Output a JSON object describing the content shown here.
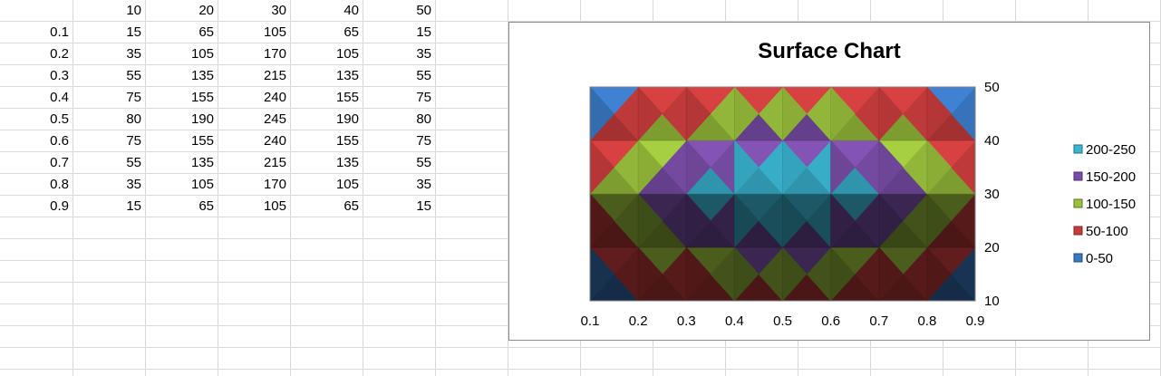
{
  "sheet": {
    "header_cols": [
      "10",
      "20",
      "30",
      "40",
      "50"
    ],
    "rows": [
      {
        "label": "0.1",
        "cells": [
          "15",
          "65",
          "105",
          "65",
          "15"
        ]
      },
      {
        "label": "0.2",
        "cells": [
          "35",
          "105",
          "170",
          "105",
          "35"
        ]
      },
      {
        "label": "0.3",
        "cells": [
          "55",
          "135",
          "215",
          "135",
          "55"
        ]
      },
      {
        "label": "0.4",
        "cells": [
          "75",
          "155",
          "240",
          "155",
          "75"
        ]
      },
      {
        "label": "0.5",
        "cells": [
          "80",
          "190",
          "245",
          "190",
          "80"
        ]
      },
      {
        "label": "0.6",
        "cells": [
          "75",
          "155",
          "240",
          "155",
          "75"
        ]
      },
      {
        "label": "0.7",
        "cells": [
          "55",
          "135",
          "215",
          "135",
          "55"
        ]
      },
      {
        "label": "0.8",
        "cells": [
          "35",
          "105",
          "170",
          "105",
          "35"
        ]
      },
      {
        "label": "0.9",
        "cells": [
          "15",
          "65",
          "105",
          "65",
          "15"
        ]
      }
    ]
  },
  "chart_data": {
    "type": "heatmap",
    "subtype": "surface",
    "title": "Surface Chart",
    "x": [
      0.1,
      0.2,
      0.3,
      0.4,
      0.5,
      0.6,
      0.7,
      0.8,
      0.9
    ],
    "x_tick_labels": [
      "0.1",
      "0.2",
      "0.3",
      "0.4",
      "0.5",
      "0.6",
      "0.7",
      "0.8",
      "0.9"
    ],
    "y": [
      10,
      20,
      30,
      40,
      50
    ],
    "y_tick_labels": [
      "10",
      "20",
      "30",
      "40",
      "50"
    ],
    "z": [
      [
        15,
        65,
        105,
        65,
        15
      ],
      [
        35,
        105,
        170,
        105,
        35
      ],
      [
        55,
        135,
        215,
        135,
        55
      ],
      [
        75,
        155,
        240,
        155,
        75
      ],
      [
        80,
        190,
        245,
        190,
        80
      ],
      [
        75,
        155,
        240,
        155,
        75
      ],
      [
        55,
        135,
        215,
        135,
        55
      ],
      [
        35,
        105,
        170,
        105,
        35
      ],
      [
        15,
        65,
        105,
        65,
        15
      ]
    ],
    "bands": [
      {
        "label": "0-50",
        "min": 0,
        "max": 50,
        "color": "#3a78c4"
      },
      {
        "label": "50-100",
        "min": 50,
        "max": 100,
        "color": "#c83c3c"
      },
      {
        "label": "100-150",
        "min": 100,
        "max": 150,
        "color": "#9ac03c"
      },
      {
        "label": "150-200",
        "min": 150,
        "max": 200,
        "color": "#7a4ea8"
      },
      {
        "label": "200-250",
        "min": 200,
        "max": 250,
        "color": "#3ab6d2"
      }
    ],
    "legend_position": "right",
    "y_axis_side": "right",
    "grid": true
  }
}
